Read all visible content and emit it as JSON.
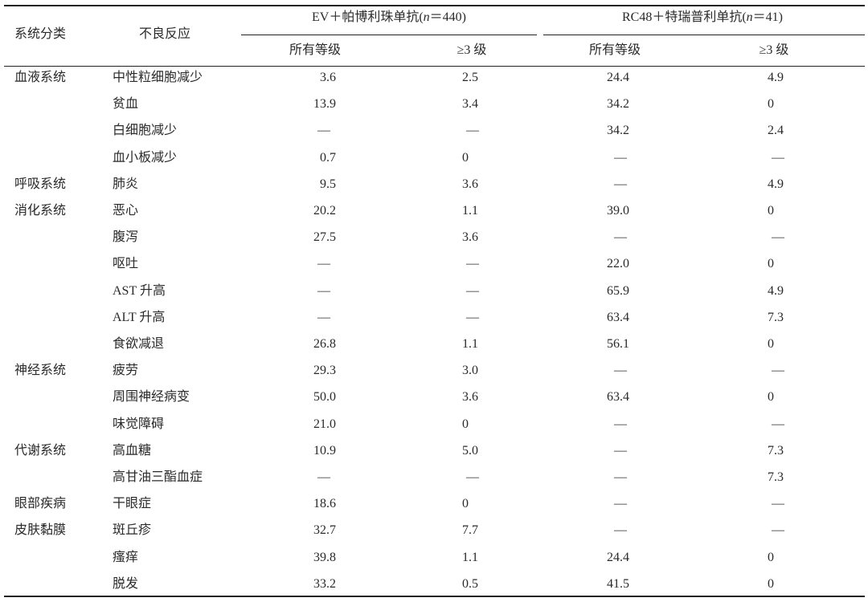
{
  "header": {
    "col_system": "系统分类",
    "col_reaction": "不良反应",
    "group1": {
      "prefix": "EV＋帕博利珠单抗(",
      "n_label": "n",
      "n_value": "＝440)"
    },
    "group2": {
      "prefix": "RC48＋特瑞普利单抗(",
      "n_label": "n",
      "n_value": "＝41)"
    },
    "sub_all": "所有等级",
    "sub_g3": "≥3 级"
  },
  "rows": [
    {
      "system": "血液系统",
      "reaction": "中性粒细胞减少",
      "ev_all": "3.6",
      "ev_g3": "2.5",
      "rc_all": "24.4",
      "rc_g3": "4.9"
    },
    {
      "system": "",
      "reaction": "贫血",
      "ev_all": "13.9",
      "ev_g3": "3.4",
      "rc_all": "34.2",
      "rc_g3": "0"
    },
    {
      "system": "",
      "reaction": "白细胞减少",
      "ev_all": "—",
      "ev_g3": "—",
      "rc_all": "34.2",
      "rc_g3": "2.4"
    },
    {
      "system": "",
      "reaction": "血小板减少",
      "ev_all": "0.7",
      "ev_g3": "0",
      "rc_all": "—",
      "rc_g3": "—"
    },
    {
      "system": "呼吸系统",
      "reaction": "肺炎",
      "ev_all": "9.5",
      "ev_g3": "3.6",
      "rc_all": "—",
      "rc_g3": "4.9"
    },
    {
      "system": "消化系统",
      "reaction": "恶心",
      "ev_all": "20.2",
      "ev_g3": "1.1",
      "rc_all": "39.0",
      "rc_g3": "0"
    },
    {
      "system": "",
      "reaction": "腹泻",
      "ev_all": "27.5",
      "ev_g3": "3.6",
      "rc_all": "—",
      "rc_g3": "—"
    },
    {
      "system": "",
      "reaction": "呕吐",
      "ev_all": "—",
      "ev_g3": "—",
      "rc_all": "22.0",
      "rc_g3": "0"
    },
    {
      "system": "",
      "reaction": "AST 升高",
      "ev_all": "—",
      "ev_g3": "—",
      "rc_all": "65.9",
      "rc_g3": "4.9"
    },
    {
      "system": "",
      "reaction": "ALT 升高",
      "ev_all": "—",
      "ev_g3": "—",
      "rc_all": "63.4",
      "rc_g3": "7.3"
    },
    {
      "system": "",
      "reaction": "食欲减退",
      "ev_all": "26.8",
      "ev_g3": "1.1",
      "rc_all": "56.1",
      "rc_g3": "0"
    },
    {
      "system": "神经系统",
      "reaction": "疲劳",
      "ev_all": "29.3",
      "ev_g3": "3.0",
      "rc_all": "—",
      "rc_g3": "—"
    },
    {
      "system": "",
      "reaction": "周围神经病变",
      "ev_all": "50.0",
      "ev_g3": "3.6",
      "rc_all": "63.4",
      "rc_g3": "0"
    },
    {
      "system": "",
      "reaction": "味觉障碍",
      "ev_all": "21.0",
      "ev_g3": "0",
      "rc_all": "—",
      "rc_g3": "—"
    },
    {
      "system": "代谢系统",
      "reaction": "高血糖",
      "ev_all": "10.9",
      "ev_g3": "5.0",
      "rc_all": "—",
      "rc_g3": "7.3"
    },
    {
      "system": "",
      "reaction": "高甘油三酯血症",
      "ev_all": "—",
      "ev_g3": "—",
      "rc_all": "—",
      "rc_g3": "7.3"
    },
    {
      "system": "眼部疾病",
      "reaction": "干眼症",
      "ev_all": "18.6",
      "ev_g3": "0",
      "rc_all": "—",
      "rc_g3": "—"
    },
    {
      "system": "皮肤黏膜",
      "reaction": "斑丘疹",
      "ev_all": "32.7",
      "ev_g3": "7.7",
      "rc_all": "—",
      "rc_g3": "—"
    },
    {
      "system": "",
      "reaction": "瘙痒",
      "ev_all": "39.8",
      "ev_g3": "1.1",
      "rc_all": "24.4",
      "rc_g3": "0"
    },
    {
      "system": "",
      "reaction": "脱发",
      "ev_all": "33.2",
      "ev_g3": "0.5",
      "rc_all": "41.5",
      "rc_g3": "0"
    }
  ]
}
